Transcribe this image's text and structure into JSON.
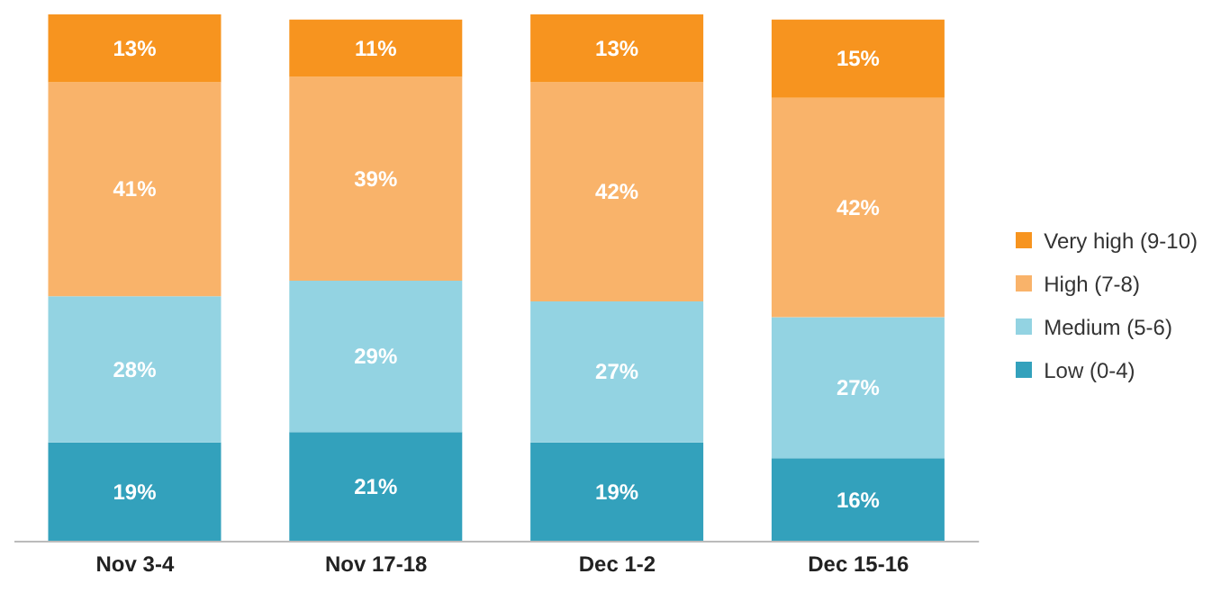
{
  "chart_data": {
    "type": "bar",
    "stacked": true,
    "tick_labels": "x",
    "legend": "right",
    "categories": [
      "Nov 3-4",
      "Nov 17-18",
      "Dec 1-2",
      "Dec 15-16"
    ],
    "series": [
      {
        "name": "Low (0-4)",
        "color": "#33a1bc",
        "values": [
          19,
          21,
          19,
          16
        ],
        "value_labels": [
          "19%",
          "21%",
          "19%",
          "16%"
        ]
      },
      {
        "name": "Medium (5-6)",
        "color": "#93d3e2",
        "values": [
          28,
          29,
          27,
          27
        ],
        "value_labels": [
          "28%",
          "29%",
          "27%",
          "27%"
        ]
      },
      {
        "name": "High (7-8)",
        "color": "#f9b36a",
        "values": [
          41,
          39,
          42,
          42
        ],
        "value_labels": [
          "41%",
          "39%",
          "42%",
          "42%"
        ]
      },
      {
        "name": "Very high (9-10)",
        "color": "#f7941f",
        "values": [
          13,
          11,
          13,
          15
        ],
        "value_labels": [
          "13%",
          "11%",
          "13%",
          "15%"
        ]
      }
    ]
  }
}
